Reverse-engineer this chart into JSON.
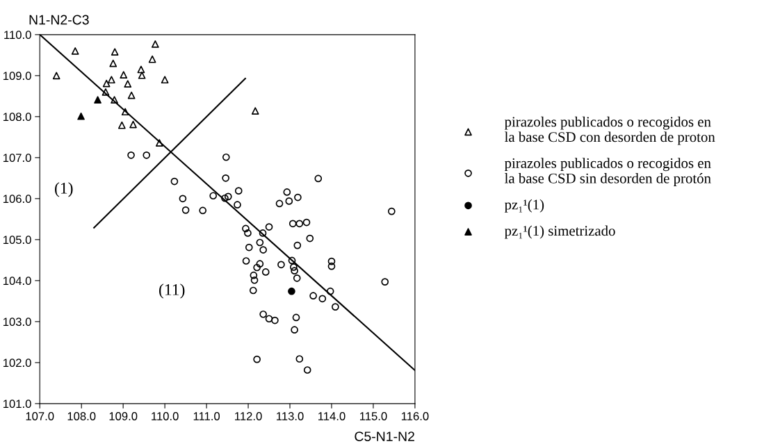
{
  "chart_data": {
    "type": "scatter",
    "xlabel": "C5-N1-N2",
    "ylabel": "N1-N2-C3",
    "xlim": [
      107,
      116
    ],
    "ylim": [
      101,
      110
    ],
    "xticks": [
      {
        "value": 107,
        "label": "107.0"
      },
      {
        "value": 108,
        "label": "108.0"
      },
      {
        "value": 109,
        "label": "109.0"
      },
      {
        "value": 110,
        "label": "110.0"
      },
      {
        "value": 111,
        "label": "111.0"
      },
      {
        "value": 112,
        "label": "112.0"
      },
      {
        "value": 113,
        "label": "113.0"
      },
      {
        "value": 114,
        "label": "114.0"
      },
      {
        "value": 115,
        "label": "115.0"
      },
      {
        "value": 116,
        "label": "116.0"
      }
    ],
    "yticks": [
      {
        "value": 101,
        "label": "101.0"
      },
      {
        "value": 102,
        "label": "102.0"
      },
      {
        "value": 103,
        "label": "103.0"
      },
      {
        "value": 104,
        "label": "104.0"
      },
      {
        "value": 105,
        "label": "105.0"
      },
      {
        "value": 106,
        "label": "106.0"
      },
      {
        "value": 107,
        "label": "107.0"
      },
      {
        "value": 108,
        "label": "108.0"
      },
      {
        "value": 109,
        "label": "109.0"
      },
      {
        "value": 110,
        "label": "110.0"
      }
    ],
    "grid": false,
    "legend": "right",
    "series": [
      {
        "name": "pirazoles publicados o recogidos en\nla base CSD con desorden de proton",
        "marker": "triangle",
        "color": "#000000",
        "x": [
          107.4,
          107.85,
          108.8,
          108.76,
          109.77,
          109.7,
          109.43,
          109.45,
          109.01,
          108.6,
          108.72,
          109.11,
          110.0,
          108.58,
          109.2,
          108.79,
          109.05,
          108.97,
          109.24,
          109.87,
          112.17
        ],
        "values": [
          109.0,
          109.6,
          109.58,
          109.3,
          109.77,
          109.4,
          109.15,
          109.01,
          109.02,
          108.81,
          108.9,
          108.8,
          108.9,
          108.6,
          108.52,
          108.41,
          108.12,
          107.79,
          107.81,
          107.36,
          108.14
        ]
      },
      {
        "name": "pirazoles publicados o recogidos en\nla base CSD sin desorden de protón",
        "marker": "circle",
        "color": "#000000",
        "x": [
          109.19,
          109.56,
          111.47,
          111.46,
          110.23,
          111.77,
          113.68,
          112.93,
          111.16,
          111.52,
          111.44,
          110.43,
          113.19,
          112.98,
          112.75,
          111.74,
          110.5,
          110.91,
          115.44,
          113.07,
          113.23,
          113.4,
          112.5,
          111.94,
          111.99,
          112.35,
          113.48,
          112.28,
          113.18,
          112.02,
          112.36,
          113.05,
          111.95,
          112.79,
          112.28,
          112.21,
          113.09,
          114.0,
          114.0,
          112.42,
          113.11,
          112.13,
          112.15,
          113.17,
          115.28,
          112.12,
          113.97,
          113.56,
          113.78,
          114.09,
          112.36,
          112.5,
          112.64,
          113.15,
          113.11,
          112.21,
          113.23,
          113.42
        ],
        "values": [
          107.06,
          107.06,
          107.01,
          106.5,
          106.42,
          106.19,
          106.49,
          106.16,
          106.07,
          106.05,
          106.01,
          106.0,
          106.03,
          105.94,
          105.88,
          105.85,
          105.72,
          105.71,
          105.69,
          105.39,
          105.39,
          105.42,
          105.31,
          105.27,
          105.16,
          105.16,
          105.03,
          104.93,
          104.86,
          104.81,
          104.75,
          104.49,
          104.48,
          104.39,
          104.41,
          104.32,
          104.33,
          104.47,
          104.35,
          104.21,
          104.24,
          104.13,
          104.01,
          104.06,
          103.97,
          103.76,
          103.74,
          103.63,
          103.56,
          103.36,
          103.18,
          103.07,
          103.03,
          103.1,
          102.8,
          102.08,
          102.09,
          101.82
        ]
      },
      {
        "name": "pz₁¹(1)",
        "marker": "circle",
        "color": "#000000",
        "x": [
          113.04
        ],
        "values": [
          103.74
        ]
      },
      {
        "name": "pz₁¹(1) simetrizado",
        "marker": "triangle",
        "color": "#000000",
        "x": [
          108.39,
          107.99
        ],
        "values": [
          108.41,
          108.01
        ]
      },
      {
        "type": "line",
        "color": "#000000",
        "x": [
          107.0,
          116.0
        ],
        "values": [
          110.0,
          101.81
        ]
      },
      {
        "type": "line",
        "color": "#000000",
        "x": [
          108.3,
          111.93
        ],
        "values": [
          105.29,
          108.93
        ]
      }
    ],
    "annotations": [
      "(1)",
      "(11)"
    ]
  }
}
